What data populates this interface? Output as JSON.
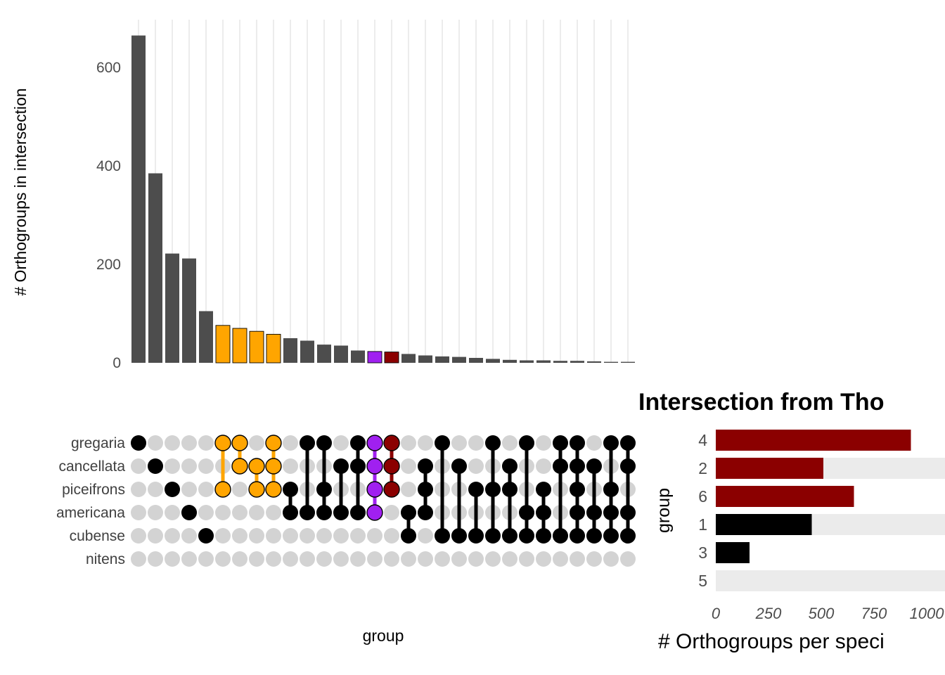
{
  "palette": {
    "bar_default": "#4D4D4D",
    "gray": "#4D4D4D",
    "orange": "#FFA500",
    "purple": "#A020F0",
    "darkred": "#8B0000",
    "black": "#000000",
    "dot_gray": "#D3D3D3",
    "grid": "#E4E4E4",
    "stripe": "#EBEBEB",
    "tick_text": "#4D4D4D",
    "label_text": "#404040"
  },
  "left_chart": {
    "ylabel": "# Orthogroups in intersection",
    "xlabel": "group",
    "yticks": [
      0,
      200,
      400,
      600
    ]
  },
  "upset": {
    "species": [
      "gregaria",
      "cancellata",
      "piceifrons",
      "americana",
      "cubense",
      "nitens"
    ],
    "columns": [
      {
        "value": 665,
        "color": "gray",
        "members": [
          0
        ]
      },
      {
        "value": 385,
        "color": "gray",
        "members": [
          1
        ]
      },
      {
        "value": 222,
        "color": "gray",
        "members": [
          2
        ]
      },
      {
        "value": 212,
        "color": "gray",
        "members": [
          3
        ]
      },
      {
        "value": 105,
        "color": "gray",
        "members": [
          4
        ]
      },
      {
        "value": 76,
        "color": "orange",
        "members": [
          0,
          2
        ]
      },
      {
        "value": 70,
        "color": "orange",
        "members": [
          0,
          1
        ]
      },
      {
        "value": 64,
        "color": "orange",
        "members": [
          1,
          2
        ]
      },
      {
        "value": 58,
        "color": "orange",
        "members": [
          0,
          1,
          2
        ]
      },
      {
        "value": 50,
        "color": "gray",
        "members": [
          2,
          3
        ]
      },
      {
        "value": 45,
        "color": "gray",
        "members": [
          0,
          3
        ]
      },
      {
        "value": 37,
        "color": "gray",
        "members": [
          0,
          2,
          3
        ]
      },
      {
        "value": 35,
        "color": "gray",
        "members": [
          1,
          3
        ]
      },
      {
        "value": 25,
        "color": "gray",
        "members": [
          0,
          1,
          3
        ]
      },
      {
        "value": 23,
        "color": "purple",
        "members": [
          0,
          1,
          2,
          3
        ]
      },
      {
        "value": 22,
        "color": "darkred",
        "members": [
          0,
          1,
          2
        ]
      },
      {
        "value": 18,
        "color": "gray",
        "members": [
          3,
          4
        ]
      },
      {
        "value": 15,
        "color": "gray",
        "members": [
          1,
          2,
          3
        ]
      },
      {
        "value": 13,
        "color": "gray",
        "members": [
          0,
          4
        ]
      },
      {
        "value": 12,
        "color": "gray",
        "members": [
          1,
          4
        ]
      },
      {
        "value": 10,
        "color": "gray",
        "members": [
          2,
          4
        ]
      },
      {
        "value": 8,
        "color": "gray",
        "members": [
          0,
          2,
          4
        ]
      },
      {
        "value": 6,
        "color": "gray",
        "members": [
          1,
          2,
          4
        ]
      },
      {
        "value": 5,
        "color": "gray",
        "members": [
          0,
          3,
          4
        ]
      },
      {
        "value": 5,
        "color": "gray",
        "members": [
          2,
          3,
          4
        ]
      },
      {
        "value": 4,
        "color": "gray",
        "members": [
          0,
          1,
          4
        ]
      },
      {
        "value": 4,
        "color": "gray",
        "members": [
          0,
          1,
          2,
          3,
          4
        ]
      },
      {
        "value": 3,
        "color": "gray",
        "members": [
          1,
          3,
          4
        ]
      },
      {
        "value": 2,
        "color": "gray",
        "members": [
          0,
          2,
          3,
          4
        ]
      },
      {
        "value": 2,
        "color": "gray",
        "members": [
          0,
          1,
          3,
          4
        ]
      }
    ]
  },
  "right_chart": {
    "title": "Intersection from Tho",
    "ylabel": "group",
    "xlabel": "# Orthogroups per speci",
    "categories": [
      "4",
      "2",
      "6",
      "1",
      "3",
      "5"
    ],
    "values": [
      925,
      510,
      655,
      455,
      160,
      0
    ],
    "colors": [
      "darkred",
      "darkred",
      "darkred",
      "black",
      "black",
      "none"
    ],
    "xticks": [
      0,
      250,
      500,
      750,
      1000
    ],
    "xlim": [
      0,
      1085
    ],
    "row_stripes": true
  },
  "chart_data": [
    {
      "type": "bar",
      "title": "",
      "xlabel": "group",
      "ylabel": "# Orthogroups in intersection",
      "ylim": [
        0,
        680
      ],
      "yticks": [
        0,
        200,
        400,
        600
      ],
      "grid": "vertical-only",
      "categories": [
        "gregaria",
        "cancellata",
        "piceifrons",
        "americana",
        "cubense",
        "gregaria∩piceifrons",
        "gregaria∩cancellata",
        "cancellata∩piceifrons",
        "gregaria∩cancellata∩piceifrons",
        "piceifrons∩americana",
        "gregaria∩americana",
        "gregaria∩piceifrons∩americana",
        "cancellata∩americana",
        "gregaria∩cancellata∩americana",
        "gregaria∩cancellata∩piceifrons∩americana",
        "gregaria∩cancellata∩piceifrons (dark red)",
        "americana∩cubense",
        "cancellata∩piceifrons∩americana",
        "gregaria∩cubense",
        "cancellata∩cubense",
        "piceifrons∩cubense",
        "gregaria∩piceifrons∩cubense",
        "cancellata∩piceifrons∩cubense",
        "gregaria∩americana∩cubense",
        "piceifrons∩americana∩cubense",
        "gregaria∩cancellata∩cubense",
        "gregaria∩cancellata∩piceifrons∩americana∩cubense",
        "cancellata∩americana∩cubense",
        "gregaria∩piceifrons∩americana∩cubense",
        "gregaria∩cancellata∩americana∩cubense"
      ],
      "values": [
        665,
        385,
        222,
        212,
        105,
        76,
        70,
        64,
        58,
        50,
        45,
        37,
        35,
        25,
        23,
        22,
        18,
        15,
        13,
        12,
        10,
        8,
        6,
        5,
        5,
        4,
        4,
        3,
        2,
        2
      ],
      "bar_colors": [
        "#4D4D4D",
        "#4D4D4D",
        "#4D4D4D",
        "#4D4D4D",
        "#4D4D4D",
        "#FFA500",
        "#FFA500",
        "#FFA500",
        "#FFA500",
        "#4D4D4D",
        "#4D4D4D",
        "#4D4D4D",
        "#4D4D4D",
        "#4D4D4D",
        "#A020F0",
        "#8B0000",
        "#4D4D4D",
        "#4D4D4D",
        "#4D4D4D",
        "#4D4D4D",
        "#4D4D4D",
        "#4D4D4D",
        "#4D4D4D",
        "#4D4D4D",
        "#4D4D4D",
        "#4D4D4D",
        "#4D4D4D",
        "#4D4D4D",
        "#4D4D4D",
        "#4D4D4D"
      ]
    },
    {
      "type": "bar",
      "orientation": "horizontal",
      "title": "Intersection from Tho",
      "xlabel": "# Orthogroups per speci",
      "ylabel": "group",
      "categories": [
        "4",
        "2",
        "6",
        "1",
        "3",
        "5"
      ],
      "values": [
        925,
        510,
        655,
        455,
        160,
        0
      ],
      "xticks": [
        0,
        250,
        500,
        750,
        1000
      ],
      "xlim": [
        0,
        1085
      ],
      "bar_colors": [
        "#8B0000",
        "#8B0000",
        "#8B0000",
        "#000000",
        "#000000",
        "none"
      ],
      "legend": "none",
      "row_stripes": true
    }
  ]
}
